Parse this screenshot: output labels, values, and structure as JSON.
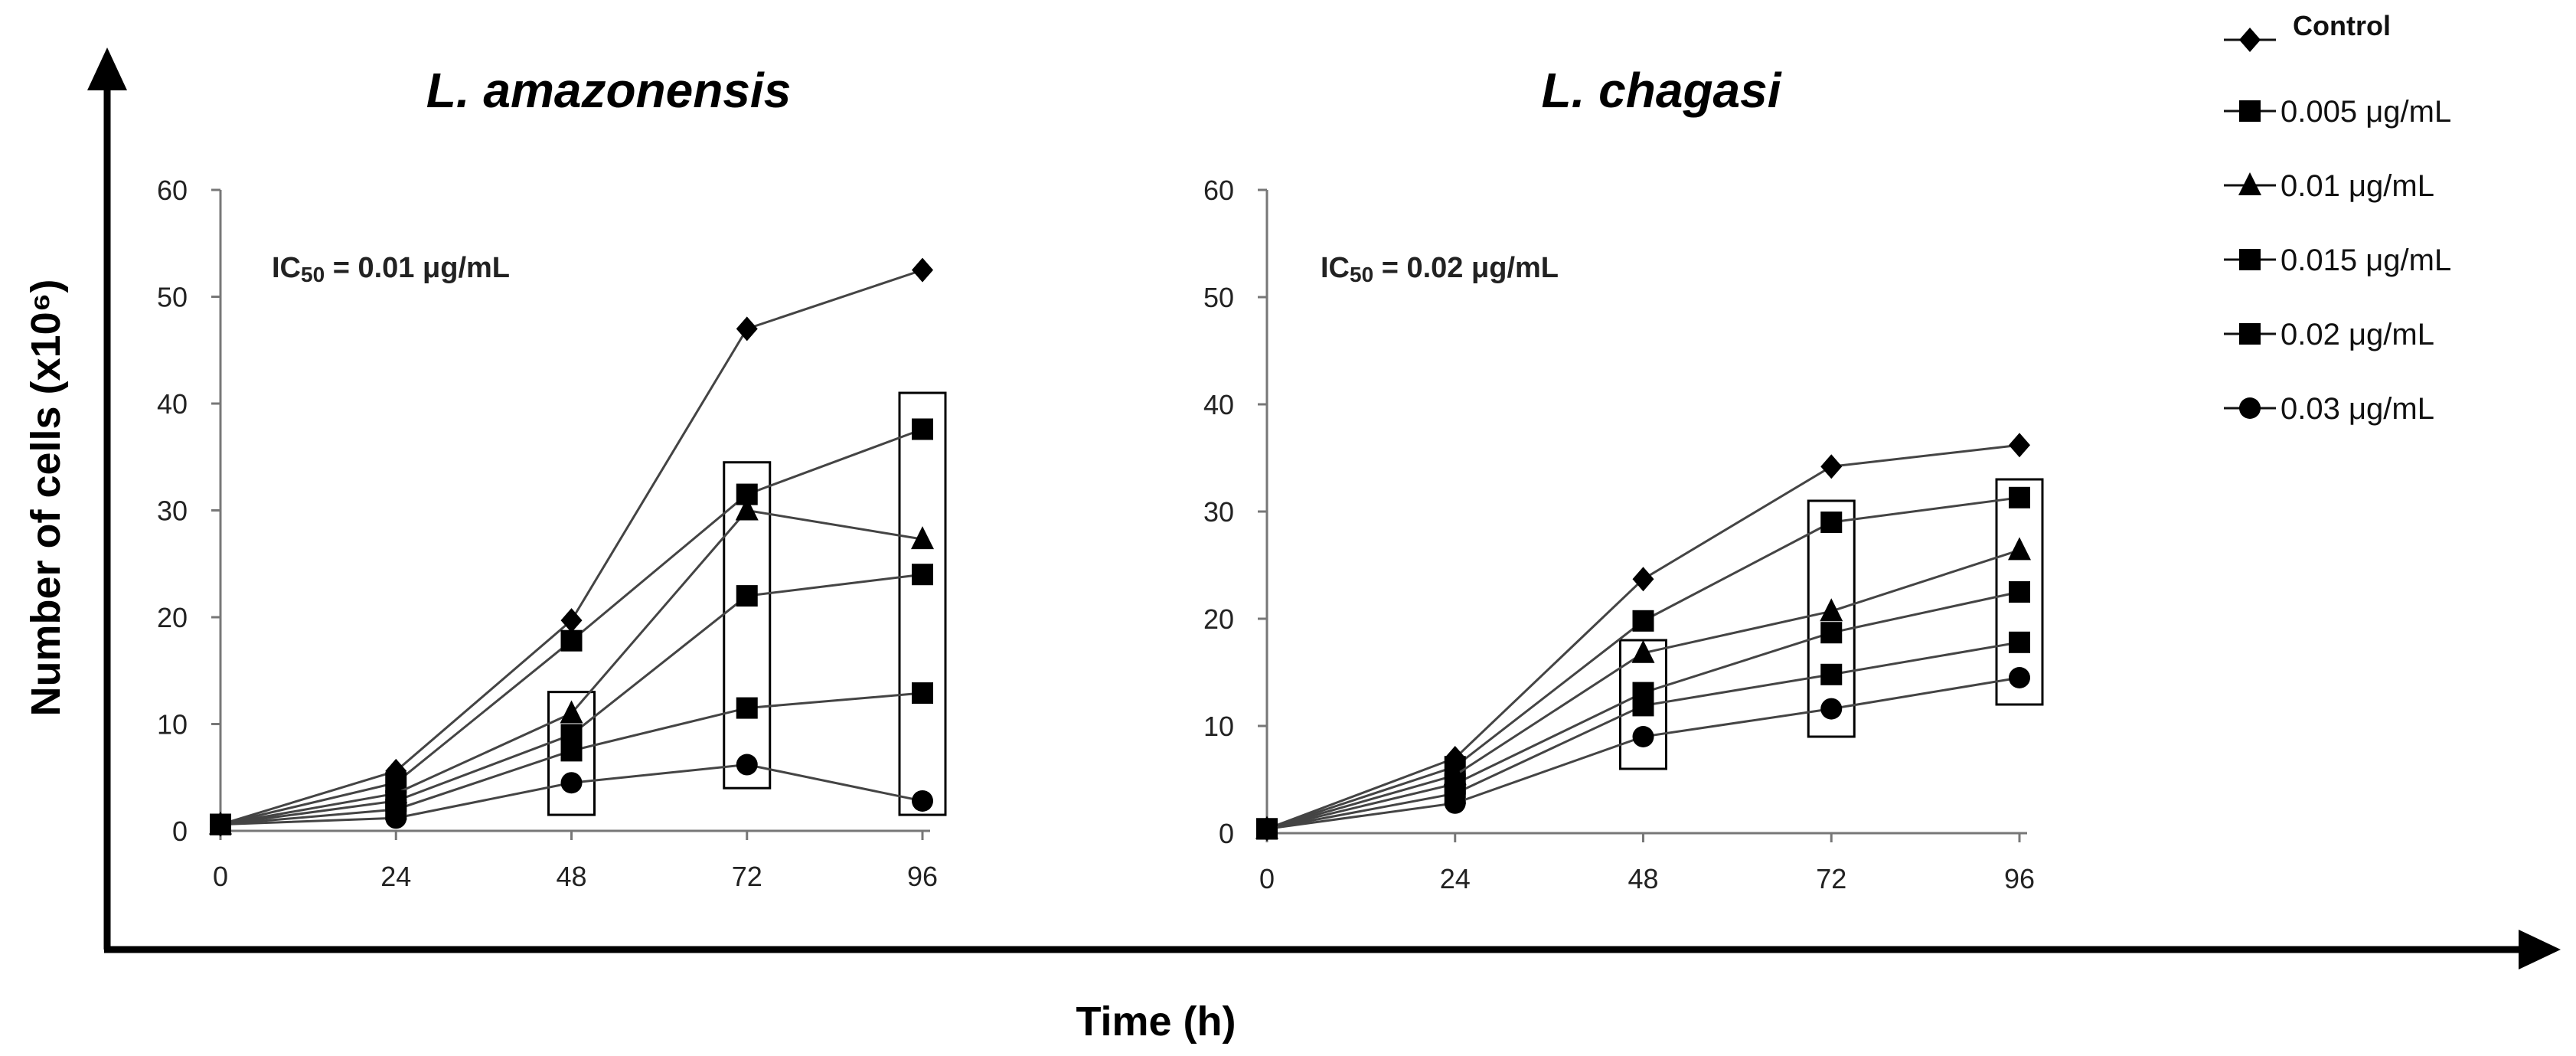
{
  "figure": {
    "x_axis_label": "Time (h)",
    "y_axis_label": "Number of cells (x10⁶)"
  },
  "legend": [
    {
      "label": "Control",
      "marker": "diamond"
    },
    {
      "label": "0.005 μg/mL",
      "marker": "square"
    },
    {
      "label": "0.01 μg/mL",
      "marker": "triangle"
    },
    {
      "label": "0.015 μg/mL",
      "marker": "square"
    },
    {
      "label": "0.02 μg/mL",
      "marker": "square"
    },
    {
      "label": "0.03 μg/mL",
      "marker": "circle"
    }
  ],
  "chart_data": [
    {
      "type": "line",
      "title": "L. amazonensis",
      "annotation": {
        "prefix": "IC",
        "sub": "50",
        "suffix": " = 0.01 μg/mL"
      },
      "xlabel": "Time (h)",
      "ylabel": "Number of cells (x10⁶)",
      "x": [
        0,
        24,
        48,
        72,
        96
      ],
      "ylim": [
        0,
        60
      ],
      "yticks": [
        0,
        10,
        20,
        30,
        40,
        50,
        60
      ],
      "series": [
        {
          "name": "Control",
          "marker": "diamond",
          "values": [
            0.6,
            5.6,
            19.7,
            47.0,
            52.5
          ]
        },
        {
          "name": "0.005 μg/mL",
          "marker": "square",
          "values": [
            0.6,
            4.5,
            17.8,
            31.5,
            37.6
          ]
        },
        {
          "name": "0.01 μg/mL",
          "marker": "triangle",
          "values": [
            0.6,
            3.5,
            11.0,
            30.0,
            27.3
          ]
        },
        {
          "name": "0.015 μg/mL",
          "marker": "square",
          "values": [
            0.6,
            2.8,
            9.0,
            22.0,
            24.0
          ]
        },
        {
          "name": "0.02 μg/mL",
          "marker": "square",
          "values": [
            0.6,
            2.0,
            7.5,
            11.5,
            12.9
          ]
        },
        {
          "name": "0.03 μg/mL",
          "marker": "circle",
          "values": [
            0.6,
            1.2,
            4.5,
            6.2,
            2.8
          ]
        }
      ],
      "boxes": [
        {
          "x": 48,
          "ymin": 1.5,
          "ymax": 13.0
        },
        {
          "x": 72,
          "ymin": 4.0,
          "ymax": 34.5
        },
        {
          "x": 96,
          "ymin": 1.5,
          "ymax": 41.0
        }
      ]
    },
    {
      "type": "line",
      "title": "L. chagasi",
      "annotation": {
        "prefix": "IC",
        "sub": "50",
        "suffix": " = 0.02 μg/mL"
      },
      "xlabel": "Time (h)",
      "ylabel": "Number of cells (x10⁶)",
      "x": [
        0,
        24,
        48,
        72,
        96
      ],
      "ylim": [
        0,
        60
      ],
      "yticks": [
        0,
        10,
        20,
        30,
        40,
        50,
        60
      ],
      "series": [
        {
          "name": "Control",
          "marker": "diamond",
          "values": [
            0.4,
            7.0,
            23.7,
            34.2,
            36.2
          ]
        },
        {
          "name": "0.005 μg/mL",
          "marker": "square",
          "values": [
            0.4,
            6.2,
            19.8,
            29.0,
            31.3
          ]
        },
        {
          "name": "0.01 μg/mL",
          "marker": "triangle",
          "values": [
            0.4,
            5.4,
            16.8,
            20.7,
            26.4
          ]
        },
        {
          "name": "0.015 μg/mL",
          "marker": "square",
          "values": [
            0.4,
            4.6,
            13.1,
            18.7,
            22.5
          ]
        },
        {
          "name": "0.02 μg/mL",
          "marker": "square",
          "values": [
            0.4,
            3.7,
            11.9,
            14.8,
            17.8
          ]
        },
        {
          "name": "0.03 μg/mL",
          "marker": "circle",
          "values": [
            0.4,
            2.8,
            9.0,
            11.6,
            14.5
          ]
        }
      ],
      "boxes": [
        {
          "x": 48,
          "ymin": 6.0,
          "ymax": 18.0
        },
        {
          "x": 72,
          "ymin": 9.0,
          "ymax": 31.0
        },
        {
          "x": 96,
          "ymin": 12.0,
          "ymax": 33.0
        }
      ]
    }
  ]
}
